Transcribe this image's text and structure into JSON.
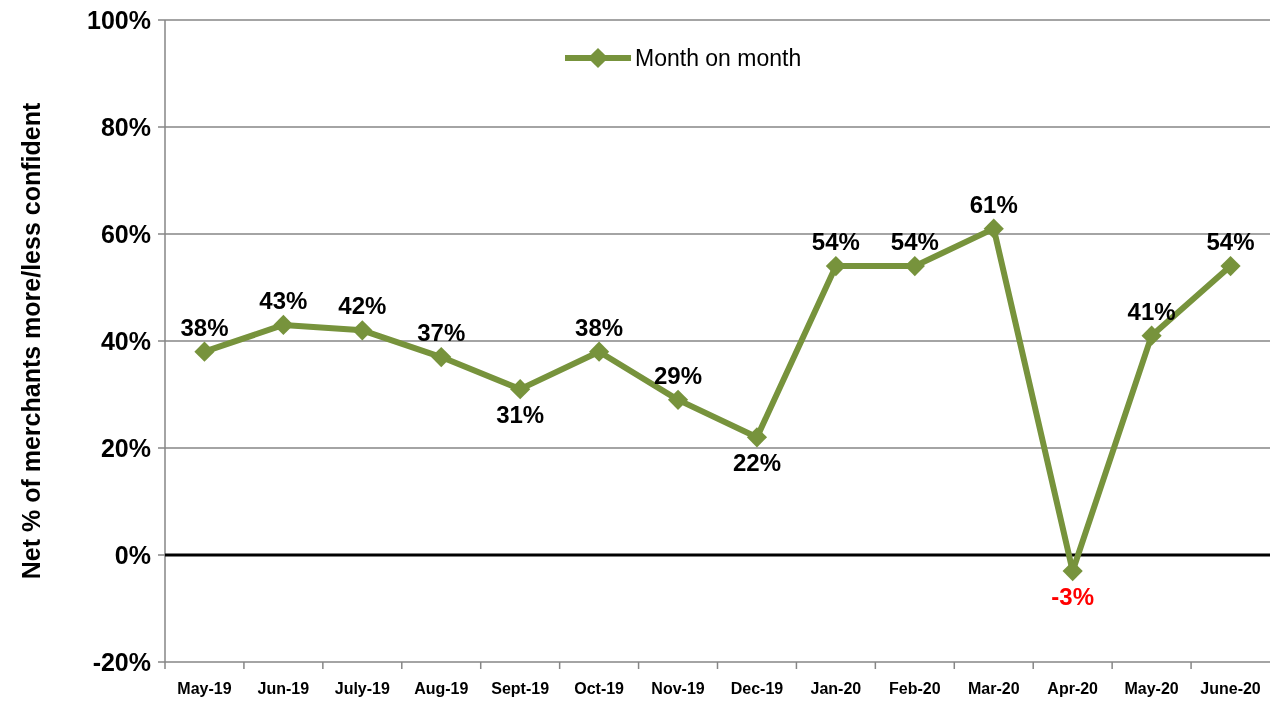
{
  "chart_data": {
    "type": "line",
    "ylabel": "Net % of merchants more/less confident",
    "categories": [
      "May-19",
      "Jun-19",
      "July-19",
      "Aug-19",
      "Sept-19",
      "Oct-19",
      "Nov-19",
      "Dec-19",
      "Jan-20",
      "Feb-20",
      "Mar-20",
      "Apr-20",
      "May-20",
      "June-20"
    ],
    "series": [
      {
        "name": "Month on month",
        "color": "#77933c",
        "values": [
          38,
          43,
          42,
          37,
          31,
          38,
          29,
          22,
          54,
          54,
          61,
          -3,
          41,
          54
        ],
        "value_labels": [
          "38%",
          "43%",
          "42%",
          "37%",
          "31%",
          "38%",
          "29%",
          "22%",
          "54%",
          "54%",
          "61%",
          "-3%",
          "41%",
          "54%"
        ]
      }
    ],
    "ylim": [
      -20,
      100
    ],
    "yticks": [
      {
        "value": -20,
        "label": "-20%"
      },
      {
        "value": 0,
        "label": "0%"
      },
      {
        "value": 20,
        "label": "20%"
      },
      {
        "value": 40,
        "label": "40%"
      },
      {
        "value": 60,
        "label": "60%"
      },
      {
        "value": 80,
        "label": "80%"
      },
      {
        "value": 100,
        "label": "100%"
      }
    ],
    "ref_lines": [
      {
        "axis": "y",
        "value": 0,
        "color": "#000000"
      }
    ],
    "grid": "y",
    "legend": "top",
    "marker": "diamond",
    "line_style": "solid"
  }
}
